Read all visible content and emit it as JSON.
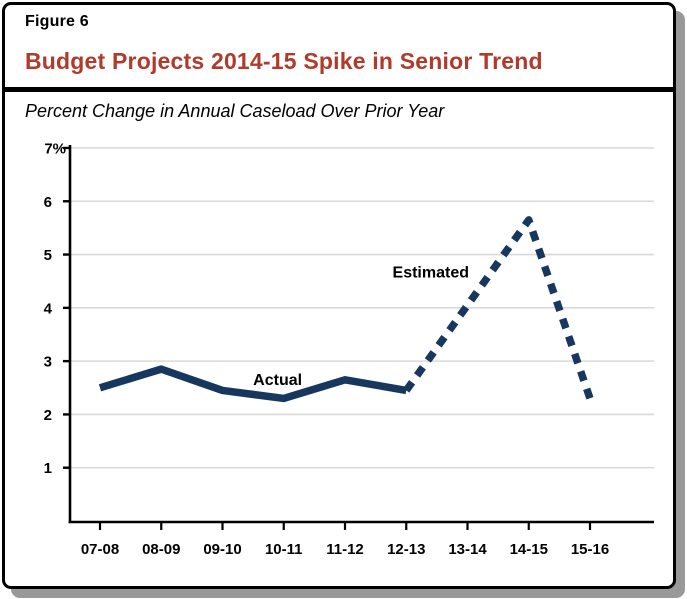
{
  "figure": {
    "label": "Figure 6",
    "title": "Budget Projects 2014-15 Spike in Senior Trend",
    "subtitle": "Percent Change in Annual Caseload Over Prior Year"
  },
  "colors": {
    "title": "#b03a2b",
    "line": "#17375e",
    "grid": "#d9d9d9",
    "axis": "#000000",
    "text": "#000000",
    "shadow": "#999999"
  },
  "chart_data": {
    "type": "line",
    "title": "Percent Change in Annual Caseload Over Prior Year",
    "categories": [
      "07-08",
      "08-09",
      "09-10",
      "10-11",
      "11-12",
      "12-13",
      "13-14",
      "14-15",
      "15-16"
    ],
    "y_axis": {
      "min": 0,
      "max": 7,
      "tick_step": 1,
      "tick_labels": [
        "1",
        "2",
        "3",
        "4",
        "5",
        "6",
        "7%"
      ],
      "grid": true
    },
    "series": [
      {
        "name": "Actual",
        "line_style": "solid",
        "start_index": 0,
        "values": [
          2.5,
          2.85,
          2.45,
          2.3,
          2.65,
          2.45
        ]
      },
      {
        "name": "Estimated",
        "line_style": "dashed",
        "start_index": 5,
        "values": [
          2.45,
          4.05,
          5.65,
          2.3
        ]
      }
    ],
    "annotations": [
      {
        "text": "Actual",
        "x_index": 2.9,
        "y_value": 2.66
      },
      {
        "text": "Estimated",
        "x_index": 5.4,
        "y_value": 4.68
      }
    ],
    "legend_position": "none"
  }
}
